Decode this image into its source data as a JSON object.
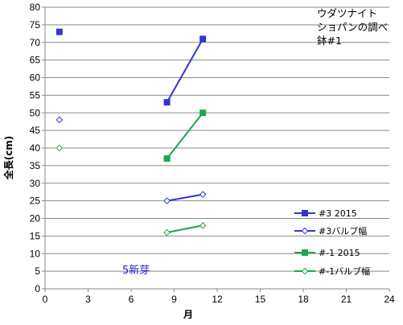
{
  "chart_data": {
    "type": "line",
    "title_lines": [
      "ウダツナイト",
      "ショパンの調べ",
      "鉢#1"
    ],
    "xlabel": "月",
    "ylabel": "全長(cm)",
    "xlim": [
      0,
      24
    ],
    "ylim": [
      0,
      80
    ],
    "xticks": [
      0,
      3,
      6,
      9,
      12,
      15,
      18,
      21,
      24
    ],
    "yticks": [
      0,
      5,
      10,
      15,
      20,
      25,
      30,
      35,
      40,
      45,
      50,
      55,
      60,
      65,
      70,
      75,
      80
    ],
    "grid": "horizontal",
    "legend_position": "right",
    "annotation": "5新芽",
    "series": [
      {
        "name": "#3 2015",
        "color": "#3333d6",
        "marker": "square",
        "connected": true,
        "points": [
          {
            "x": 1,
            "y": 73
          }
        ],
        "line_points": [
          {
            "x": 8.5,
            "y": 53
          },
          {
            "x": 11,
            "y": 71
          }
        ]
      },
      {
        "name": "#3バルブ幅",
        "color": "#3333d6",
        "marker": "diamond-open",
        "connected": true,
        "points": [
          {
            "x": 1,
            "y": 48
          }
        ],
        "line_points": [
          {
            "x": 8.5,
            "y": 25
          },
          {
            "x": 11,
            "y": 26.8
          }
        ]
      },
      {
        "name": "#-1 2015",
        "color": "#1aa84a",
        "marker": "square",
        "connected": true,
        "points": [],
        "line_points": [
          {
            "x": 8.5,
            "y": 37
          },
          {
            "x": 11,
            "y": 50
          }
        ]
      },
      {
        "name": "#-1バルブ幅",
        "color": "#1aa84a",
        "marker": "diamond-open",
        "connected": true,
        "points": [
          {
            "x": 1,
            "y": 40
          }
        ],
        "line_points": [
          {
            "x": 8.5,
            "y": 16
          },
          {
            "x": 11,
            "y": 18
          }
        ]
      }
    ]
  }
}
